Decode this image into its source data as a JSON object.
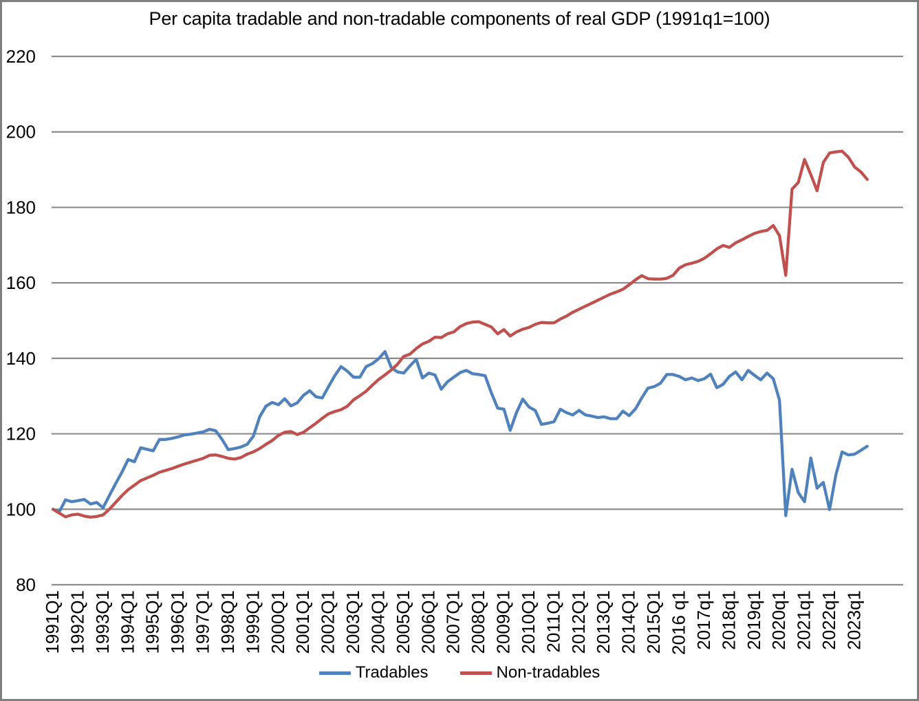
{
  "title": "Per capita tradable and non-tradable components of  real GDP  (1991q1=100)",
  "legend": [
    {
      "label": "Tradables",
      "color": "#4F81BD"
    },
    {
      "label": "Non-tradables",
      "color": "#C0504D"
    }
  ],
  "colors": {
    "gridline": "#8C8C8C",
    "axis_text": "#000000",
    "frame_border": "#7F7F7F",
    "background": "#FFFFFF"
  },
  "chart_data": {
    "type": "line",
    "title": "Per capita tradable and non-tradable components of  real GDP  (1991q1=100)",
    "frequency": "quarterly",
    "x_start": "1991Q1",
    "x_end": "2023Q3",
    "x_label_every_n_points": 4,
    "x_labels": [
      "1991Q1",
      "1992Q1",
      "1993Q1",
      "1994Q1",
      "1995Q1",
      "1996Q1",
      "1997Q1",
      "1998Q1",
      "1999Q1",
      "2000Q1",
      "2001Q1",
      "2002Q1",
      "2003Q1",
      "2004Q1",
      "2005Q1",
      "2006Q1",
      "2007Q1",
      "2008Q1",
      "2009Q1",
      "2010Q1",
      "2011Q1",
      "2012Q1",
      "2013Q1",
      "2014Q1",
      "2015Q1",
      "2016 q1",
      "2017q1",
      "2018q1",
      "2019q1",
      "2020q1",
      "2021q1",
      "2022q1",
      "2023q1"
    ],
    "y_axis": {
      "min": 80,
      "max": 220,
      "step": 20,
      "ticks": [
        220,
        200,
        180,
        160,
        140,
        120,
        100,
        80
      ]
    },
    "grid": "horizontal",
    "legend_position": "bottom",
    "series": [
      {
        "name": "Tradables",
        "color": "#4F81BD",
        "values": [
          100.0,
          99.3,
          102.5,
          102.0,
          102.3,
          102.6,
          101.4,
          101.8,
          100.4,
          103.6,
          106.8,
          109.8,
          113.2,
          112.6,
          116.3,
          115.9,
          115.5,
          118.5,
          118.5,
          118.8,
          119.2,
          119.7,
          119.9,
          120.2,
          120.5,
          121.2,
          120.8,
          118.5,
          115.8,
          116.1,
          116.5,
          117.2,
          119.4,
          124.5,
          127.3,
          128.3,
          127.7,
          129.3,
          127.4,
          128.2,
          130.2,
          131.4,
          129.8,
          129.5,
          132.5,
          135.4,
          137.8,
          136.6,
          135.0,
          135.0,
          137.8,
          138.6,
          139.9,
          141.8,
          137.6,
          136.4,
          136.1,
          138.0,
          139.7,
          134.8,
          136.1,
          135.6,
          131.8,
          133.8,
          135.0,
          136.2,
          136.8,
          135.9,
          135.7,
          135.4,
          130.8,
          126.8,
          126.5,
          120.9,
          125.6,
          129.2,
          127.1,
          126.2,
          122.5,
          122.8,
          123.2,
          126.5,
          125.6,
          125.0,
          126.2,
          125.0,
          124.7,
          124.3,
          124.5,
          124.0,
          124.0,
          126.0,
          124.8,
          126.6,
          129.5,
          132.1,
          132.5,
          133.4,
          135.7,
          135.7,
          135.2,
          134.3,
          134.8,
          134.1,
          134.6,
          135.8,
          132.2,
          133.1,
          135.2,
          136.4,
          134.3,
          136.8,
          135.5,
          134.3,
          136.1,
          134.6,
          128.9,
          98.3,
          110.6,
          104.4,
          102.0,
          113.6,
          105.6,
          107.1,
          99.9,
          109.1,
          115.2,
          114.4,
          114.6,
          115.6,
          116.7
        ]
      },
      {
        "name": "Non-tradables",
        "color": "#C0504D",
        "values": [
          100.0,
          99.0,
          98.0,
          98.5,
          98.7,
          98.2,
          97.9,
          98.1,
          98.5,
          100.0,
          101.8,
          103.6,
          105.2,
          106.4,
          107.6,
          108.3,
          109.0,
          109.8,
          110.3,
          110.8,
          111.4,
          112.0,
          112.5,
          113.0,
          113.5,
          114.3,
          114.4,
          114.0,
          113.5,
          113.3,
          113.7,
          114.6,
          115.2,
          116.1,
          117.2,
          118.2,
          119.6,
          120.4,
          120.6,
          119.8,
          120.4,
          121.6,
          122.8,
          124.1,
          125.3,
          125.9,
          126.4,
          127.3,
          129.0,
          130.1,
          131.3,
          132.9,
          134.4,
          135.6,
          136.9,
          138.4,
          140.5,
          141.1,
          142.6,
          143.8,
          144.5,
          145.6,
          145.5,
          146.5,
          147.0,
          148.4,
          149.2,
          149.6,
          149.7,
          149.0,
          148.3,
          146.5,
          147.6,
          145.9,
          147.0,
          147.7,
          148.2,
          149.0,
          149.5,
          149.4,
          149.4,
          150.4,
          151.2,
          152.2,
          153.0,
          153.8,
          154.6,
          155.4,
          156.2,
          157.0,
          157.6,
          158.3,
          159.5,
          160.8,
          161.9,
          161.1,
          161.0,
          161.0,
          161.2,
          162.0,
          163.9,
          164.8,
          165.2,
          165.7,
          166.5,
          167.7,
          169.0,
          169.9,
          169.4,
          170.6,
          171.4,
          172.3,
          173.1,
          173.6,
          173.9,
          175.2,
          172.5,
          162.0,
          184.8,
          186.6,
          192.7,
          188.7,
          184.4,
          191.9,
          194.4,
          194.7,
          194.9,
          193.3,
          190.7,
          189.4,
          187.4
        ]
      }
    ]
  }
}
